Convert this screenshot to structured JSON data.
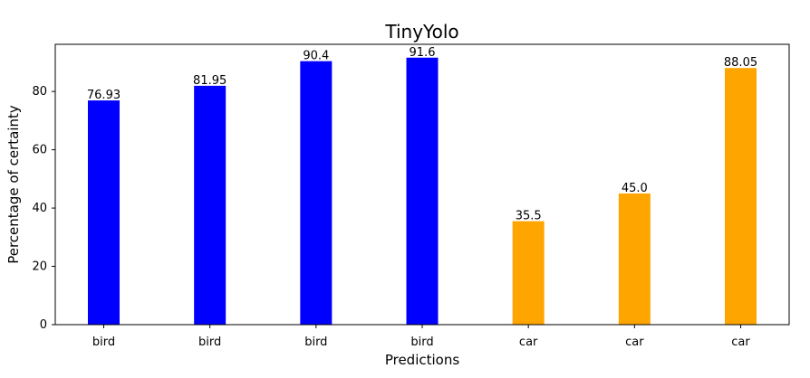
{
  "chart_data": {
    "type": "bar",
    "title": "TinyYolo",
    "xlabel": "Predictions",
    "ylabel": "Percentage of certainty",
    "categories": [
      "bird",
      "bird",
      "bird",
      "bird",
      "car",
      "car",
      "car"
    ],
    "values": [
      76.93,
      81.95,
      90.4,
      91.6,
      35.5,
      45.0,
      88.05
    ],
    "value_labels": [
      "76.93",
      "81.95",
      "90.4",
      "91.6",
      "35.5",
      "45.0",
      "88.05"
    ],
    "colors": [
      "#0000ff",
      "#0000ff",
      "#0000ff",
      "#0000ff",
      "#ffa500",
      "#ffa500",
      "#ffa500"
    ],
    "ylim": [
      0,
      96.18
    ],
    "yticks": [
      0,
      20,
      40,
      60,
      80
    ],
    "grid": false,
    "legend": false
  }
}
